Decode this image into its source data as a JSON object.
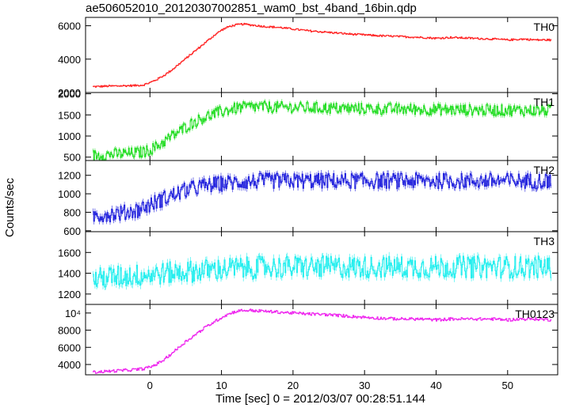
{
  "title": "ae506052010_20120307002851_wam0_bst_4band_16bin.qdp",
  "colors": {
    "TH0": "#ff2020",
    "TH1": "#22dd22",
    "TH2": "#2222dd",
    "TH3": "#22eeee",
    "TH0123": "#ee22ee"
  },
  "chart_data": {
    "type": "line",
    "title": "ae506052010_20120307002851_wam0_bst_4band_16bin.qdp",
    "xlabel": "Time [sec] 0 = 2012/03/07 00:28:51.144",
    "ylabel": "Counts/sec",
    "xlim": [
      -9,
      57
    ],
    "x_ticks": [
      0,
      10,
      20,
      30,
      40,
      50
    ],
    "grid": false,
    "panels": [
      {
        "name": "TH0",
        "ylim": [
          2000,
          6500
        ],
        "y_ticks": [
          2000,
          4000,
          6000
        ],
        "y_tick_labels": [
          "2000",
          "4000",
          "6000"
        ],
        "color": "#ff2020",
        "x": [
          -8,
          -6,
          -4,
          -2,
          -1,
          0,
          1,
          2,
          3,
          4,
          5,
          6,
          7,
          8,
          9,
          10,
          11,
          12,
          13,
          14,
          16,
          18,
          20,
          22,
          25,
          28,
          30,
          32,
          35,
          38,
          40,
          42,
          45,
          48,
          50,
          52,
          54,
          56
        ],
        "values": [
          2350,
          2380,
          2400,
          2420,
          2450,
          2600,
          2800,
          3050,
          3350,
          3700,
          4050,
          4400,
          4750,
          5100,
          5450,
          5750,
          5950,
          6050,
          6100,
          6050,
          5950,
          5900,
          5800,
          5700,
          5600,
          5500,
          5450,
          5400,
          5350,
          5300,
          5250,
          5300,
          5250,
          5200,
          5150,
          5200,
          5150,
          5150
        ]
      },
      {
        "name": "TH1",
        "ylim": [
          420,
          2030
        ],
        "y_ticks": [
          500,
          1000,
          1500,
          2000
        ],
        "y_tick_labels": [
          "500",
          "1000",
          "1500",
          "2000"
        ],
        "color": "#22dd22",
        "x": [
          -8,
          -6,
          -4,
          -2,
          -1,
          0,
          1,
          2,
          3,
          4,
          5,
          6,
          7,
          8,
          9,
          10,
          11,
          12,
          13,
          14,
          16,
          18,
          20,
          22,
          25,
          28,
          30,
          32,
          35,
          38,
          40,
          42,
          45,
          48,
          50,
          52,
          54,
          56
        ],
        "values": [
          540,
          560,
          580,
          600,
          620,
          680,
          760,
          880,
          1000,
          1100,
          1220,
          1320,
          1400,
          1470,
          1530,
          1580,
          1620,
          1660,
          1680,
          1690,
          1690,
          1680,
          1680,
          1670,
          1660,
          1650,
          1650,
          1640,
          1640,
          1630,
          1630,
          1620,
          1620,
          1610,
          1610,
          1610,
          1600,
          1610
        ]
      },
      {
        "name": "TH2",
        "ylim": [
          590,
          1360
        ],
        "y_ticks": [
          600,
          800,
          1000,
          1200
        ],
        "y_tick_labels": [
          "600",
          "800",
          "1000",
          "1200"
        ],
        "color": "#2222dd",
        "x": [
          -8,
          -6,
          -4,
          -2,
          -1,
          0,
          1,
          2,
          3,
          4,
          5,
          6,
          7,
          8,
          9,
          10,
          11,
          12,
          13,
          14,
          16,
          18,
          20,
          22,
          25,
          28,
          30,
          32,
          35,
          38,
          40,
          42,
          45,
          48,
          50,
          52,
          54,
          56
        ],
        "values": [
          760,
          780,
          790,
          820,
          850,
          880,
          920,
          950,
          980,
          1010,
          1040,
          1060,
          1080,
          1090,
          1100,
          1110,
          1120,
          1120,
          1130,
          1130,
          1140,
          1140,
          1140,
          1140,
          1140,
          1140,
          1140,
          1140,
          1140,
          1140,
          1140,
          1140,
          1140,
          1140,
          1140,
          1140,
          1140,
          1140
        ]
      },
      {
        "name": "TH3",
        "ylim": [
          1100,
          1800
        ],
        "y_ticks": [
          1200,
          1400,
          1600
        ],
        "y_tick_labels": [
          "1200",
          "1400",
          "1600"
        ],
        "color": "#22eeee",
        "x": [
          -8,
          -6,
          -4,
          -2,
          0,
          2,
          4,
          6,
          8,
          10,
          12,
          14,
          16,
          18,
          20,
          22,
          25,
          28,
          30,
          32,
          35,
          38,
          40,
          42,
          45,
          48,
          50,
          52,
          54,
          56
        ],
        "values": [
          1340,
          1360,
          1370,
          1380,
          1390,
          1400,
          1410,
          1420,
          1430,
          1440,
          1450,
          1450,
          1460,
          1460,
          1460,
          1460,
          1460,
          1460,
          1460,
          1460,
          1460,
          1460,
          1460,
          1460,
          1460,
          1460,
          1460,
          1460,
          1460,
          1460
        ]
      },
      {
        "name": "TH0123",
        "ylim": [
          2800,
          11000
        ],
        "y_ticks": [
          4000,
          6000,
          8000,
          10000
        ],
        "y_tick_labels": [
          "4000",
          "6000",
          "8000",
          "10⁴"
        ],
        "color": "#ee22ee",
        "x": [
          -8,
          -6,
          -4,
          -2,
          -1,
          0,
          1,
          2,
          3,
          4,
          5,
          6,
          7,
          8,
          9,
          10,
          11,
          12,
          13,
          14,
          16,
          18,
          20,
          22,
          25,
          28,
          30,
          32,
          35,
          38,
          40,
          42,
          45,
          48,
          50,
          52,
          54,
          56
        ],
        "values": [
          3100,
          3200,
          3300,
          3400,
          3500,
          3700,
          4100,
          4600,
          5300,
          6000,
          6700,
          7300,
          7900,
          8500,
          9000,
          9500,
          9900,
          10200,
          10300,
          10300,
          10200,
          10100,
          10000,
          9900,
          9800,
          9600,
          9500,
          9400,
          9300,
          9300,
          9200,
          9300,
          9300,
          9300,
          9200,
          9300,
          9300,
          9200
        ]
      }
    ]
  }
}
